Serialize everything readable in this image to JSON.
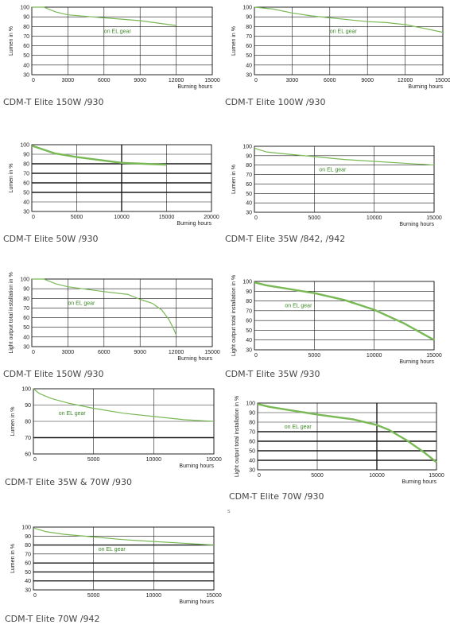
{
  "chart_data": [
    {
      "type": "line",
      "caption": "CDM-T Elite 150W /930",
      "ylabel": "Lumen in %",
      "xlabel": "Burning hours",
      "xlim": [
        0,
        15000
      ],
      "ylim": [
        30,
        100
      ],
      "x_ticks": [
        "0",
        "3000",
        "6000",
        "9000",
        "12000",
        "15000"
      ],
      "y_ticks": [
        "30",
        "40",
        "50",
        "60",
        "70",
        "80",
        "90",
        "100"
      ],
      "grid": true,
      "series": [
        {
          "name": "on EL gear",
          "color": "#79b955",
          "x": [
            0,
            1000,
            2000,
            3000,
            6000,
            9000,
            12000
          ],
          "y": [
            100,
            100,
            95,
            92,
            89,
            86,
            81
          ]
        }
      ]
    },
    {
      "type": "line",
      "caption": "CDM-T Elite 100W /930",
      "ylabel": "Lumen in %",
      "xlabel": "Burning hours",
      "xlim": [
        0,
        15000
      ],
      "ylim": [
        30,
        100
      ],
      "x_ticks": [
        "0",
        "3000",
        "6000",
        "9000",
        "12000",
        "15000"
      ],
      "y_ticks": [
        "30",
        "40",
        "50",
        "60",
        "70",
        "80",
        "90",
        "100"
      ],
      "grid": true,
      "series": [
        {
          "name": "on EL gear",
          "color": "#79b955",
          "x": [
            0,
            1500,
            3000,
            4500,
            6000,
            7500,
            9000,
            10500,
            12000,
            13500,
            15000
          ],
          "y": [
            100,
            98,
            94,
            91,
            89,
            87,
            85,
            84,
            82,
            78,
            74
          ]
        }
      ]
    },
    {
      "type": "line",
      "caption": "CDM-T Elite 50W /930",
      "ylabel": "Lumen in %",
      "xlabel": "Burning hours",
      "xlim": [
        0,
        20000
      ],
      "ylim": [
        30,
        100
      ],
      "x_ticks": [
        "0",
        "5000",
        "10000",
        "15000",
        "20000"
      ],
      "y_ticks": [
        "30",
        "40",
        "50",
        "60",
        "70",
        "80",
        "90",
        "100"
      ],
      "grid": true,
      "series": [
        {
          "name": "",
          "color": "#79b955",
          "x": [
            0,
            2500,
            5000,
            7500,
            10000,
            12500,
            15000
          ],
          "y": [
            99,
            91,
            87,
            84,
            81,
            80,
            79
          ]
        }
      ]
    },
    {
      "type": "line",
      "caption": "CDM-T Elite 35W /842, /942",
      "ylabel": "Lumen in %",
      "xlabel": "Burning hours",
      "xlim": [
        0,
        15000
      ],
      "ylim": [
        30,
        100
      ],
      "x_ticks": [
        "0",
        "5000",
        "10000",
        "15000"
      ],
      "y_ticks": [
        "30",
        "40",
        "50",
        "60",
        "70",
        "80",
        "90",
        "100"
      ],
      "grid": true,
      "series": [
        {
          "name": "on EL gear",
          "color": "#79b955",
          "x": [
            0,
            1000,
            2500,
            5000,
            7500,
            10000,
            12500,
            15000
          ],
          "y": [
            98,
            94,
            92,
            89,
            86,
            84,
            82,
            80
          ]
        }
      ]
    },
    {
      "type": "line",
      "caption": "CDM-T Elite 150W /930",
      "ylabel": "Light output total installation in %",
      "xlabel": "Burning hours",
      "xlim": [
        0,
        15000
      ],
      "ylim": [
        30,
        100
      ],
      "x_ticks": [
        "0",
        "3000",
        "6000",
        "9000",
        "12000",
        "15000"
      ],
      "y_ticks": [
        "30",
        "40",
        "50",
        "60",
        "70",
        "80",
        "90",
        "100"
      ],
      "grid": true,
      "series": [
        {
          "name": "on EL gear",
          "color": "#79b955",
          "x": [
            0,
            1000,
            2000,
            3000,
            6000,
            8000,
            9000,
            10000,
            10800,
            11400,
            11800,
            12000
          ],
          "y": [
            100,
            100,
            95,
            92,
            87,
            84,
            79,
            75,
            68,
            58,
            48,
            42
          ]
        }
      ]
    },
    {
      "type": "line",
      "caption": "CDM-T Elite 35W /930",
      "ylabel": "Light output total installation in %",
      "xlabel": "Burning hours",
      "xlim": [
        0,
        15000
      ],
      "ylim": [
        30,
        100
      ],
      "x_ticks": [
        "0",
        "5000",
        "10000",
        "15000"
      ],
      "y_ticks": [
        "30",
        "40",
        "50",
        "60",
        "70",
        "80",
        "90",
        "100"
      ],
      "grid": true,
      "series": [
        {
          "name": "on EL gear",
          "color": "#79b955",
          "x": [
            0,
            1000,
            2500,
            5000,
            7500,
            10000,
            12500,
            15000
          ],
          "y": [
            99,
            96,
            93,
            88,
            81,
            71,
            57,
            40
          ]
        }
      ]
    },
    {
      "type": "line",
      "caption": "CDM-T Elite 35W & 70W /930",
      "ylabel": "Lumen in %",
      "xlabel": "Burning hours",
      "xlim": [
        0,
        15000
      ],
      "ylim": [
        60,
        100
      ],
      "x_ticks": [
        "0",
        "5000",
        "10000",
        "15000"
      ],
      "y_ticks": [
        "60",
        "70",
        "80",
        "90",
        "100"
      ],
      "grid": true,
      "series": [
        {
          "name": "on EL gear",
          "color": "#79b955",
          "x": [
            0,
            500,
            1500,
            3000,
            5000,
            7500,
            10000,
            12500,
            15000
          ],
          "y": [
            100,
            97,
            94,
            91,
            88,
            85,
            83,
            81,
            80
          ]
        }
      ]
    },
    {
      "type": "line",
      "caption": "CDM-T Elite 70W /930",
      "ylabel": "Light output total installation in %",
      "xlabel": "Burning hours",
      "xlim": [
        0,
        15000
      ],
      "ylim": [
        30,
        100
      ],
      "x_ticks": [
        "0",
        "5000",
        "10000",
        "15000"
      ],
      "y_ticks": [
        "30",
        "40",
        "50",
        "60",
        "70",
        "80",
        "90",
        "100"
      ],
      "grid": true,
      "series": [
        {
          "name": "on EL gear",
          "color": "#79b955",
          "x": [
            0,
            1000,
            2500,
            5000,
            8000,
            10000,
            11000,
            12500,
            14000,
            15000
          ],
          "y": [
            99,
            96,
            93,
            88,
            83,
            77,
            72,
            61,
            48,
            38
          ]
        }
      ]
    },
    {
      "type": "line",
      "caption": "CDM-T Elite 70W /942",
      "ylabel": "Lumen in %",
      "xlabel": "Burning hours",
      "xlim": [
        0,
        15000
      ],
      "ylim": [
        30,
        100
      ],
      "x_ticks": [
        "0",
        "5000",
        "10000",
        "15000"
      ],
      "y_ticks": [
        "30",
        "40",
        "50",
        "60",
        "70",
        "80",
        "90",
        "100"
      ],
      "grid": true,
      "series": [
        {
          "name": "on EL gear",
          "color": "#79b955",
          "x": [
            0,
            1000,
            2500,
            5000,
            7500,
            10000,
            12500,
            15000
          ],
          "y": [
            99,
            95,
            92,
            89,
            86,
            84,
            82,
            80
          ]
        }
      ]
    }
  ],
  "stray_mark": "s"
}
